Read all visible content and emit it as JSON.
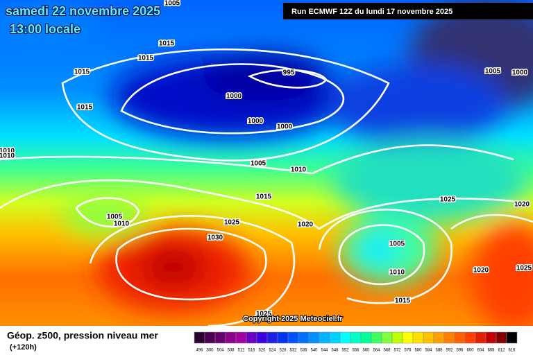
{
  "header": {
    "title": "samedi 22 novembre 2025",
    "time": "13:00 locale",
    "run": "Run ECMWF 12Z du lundi 17 novembre 2025"
  },
  "isobar_labels": [
    "1005",
    "1015",
    "1015",
    "1015",
    "1015",
    "995",
    "1000",
    "1000",
    "1000",
    "1005",
    "1010",
    "1015",
    "1025",
    "1030",
    "1005",
    "1010",
    "1020",
    "1025",
    "1020",
    "1005",
    "1010",
    "1015",
    "1020",
    "1025",
    "1005",
    "1000",
    "1010",
    "1010",
    "1025"
  ],
  "copyright": "Copyright 2025 Meteociel.fr",
  "footer": {
    "label": "Géop. z500, pression niveau mer",
    "lead": "(+120h)"
  },
  "scale": [
    496,
    500,
    504,
    508,
    512,
    516,
    520,
    524,
    528,
    532,
    536,
    540,
    544,
    548,
    552,
    556,
    560,
    564,
    568,
    572,
    576,
    580,
    584,
    588,
    592,
    596,
    600,
    604,
    608,
    612,
    616
  ]
}
